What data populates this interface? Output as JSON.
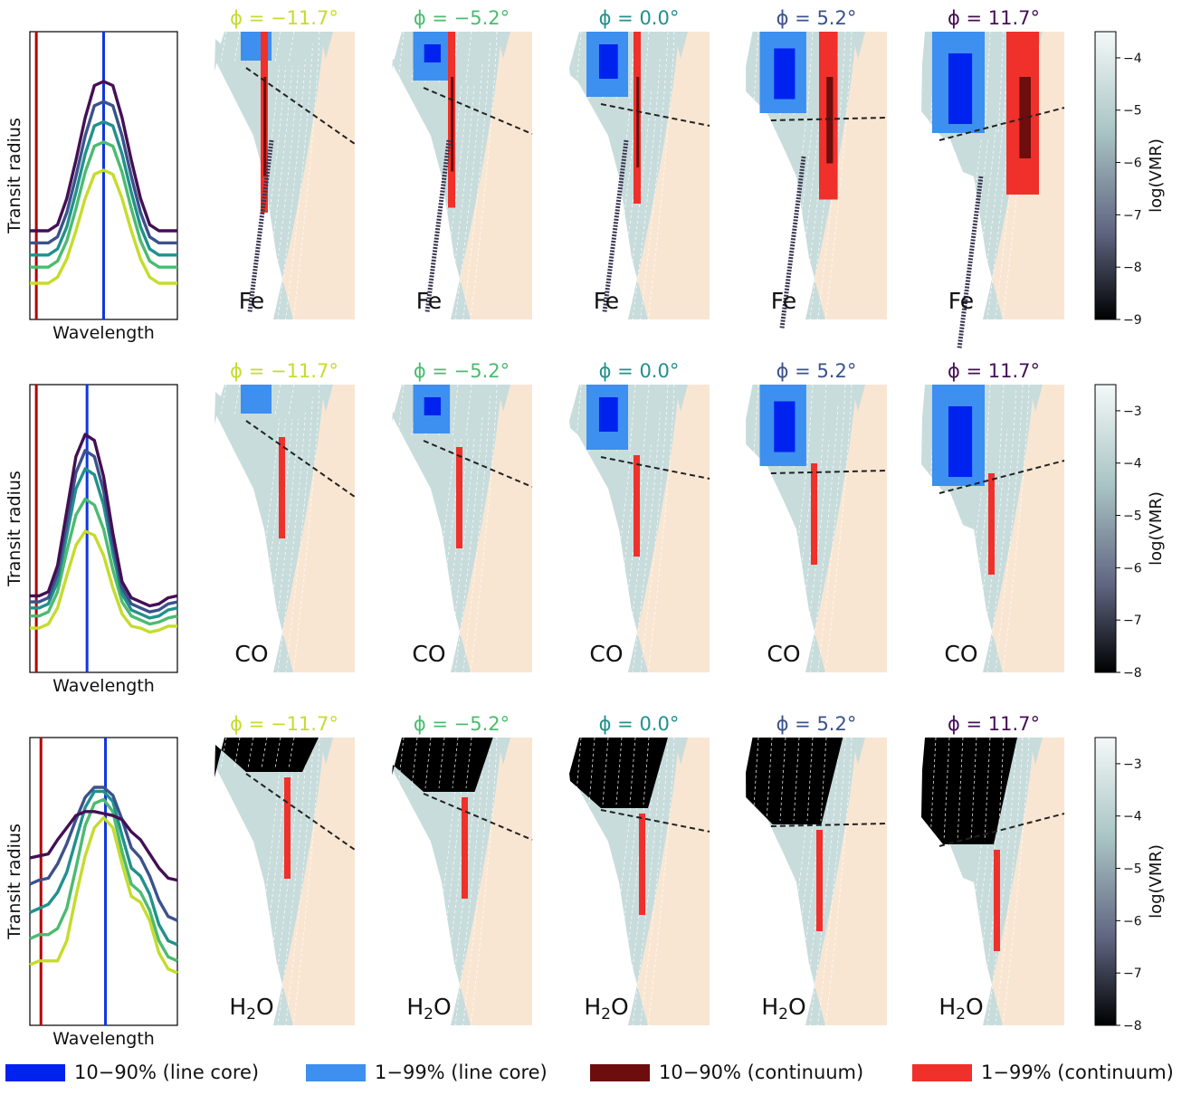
{
  "colors": {
    "line_core_10_90": "#0022ee",
    "line_core_1_99": "#3d8ff0",
    "continuum_10_90": "#6e0d0d",
    "continuum_1_99": "#f0302a",
    "reference_red": "#b40000",
    "reference_blue": "#1036e0",
    "atmosphere": "#c8dcdc",
    "planet": "#f9e6d2"
  },
  "chart_data": [
    {
      "type": "line",
      "row": "Fe",
      "xlabel": "Wavelength",
      "ylabel": "Transit radius",
      "series": [
        {
          "phase": "−11.7°",
          "color": "#c5dc2c",
          "x": [
            0,
            1,
            2,
            3,
            4,
            5,
            6,
            7,
            8,
            9,
            10,
            11,
            12,
            13,
            14,
            15,
            16
          ],
          "values": [
            0,
            0,
            0,
            0.03,
            0.12,
            0.26,
            0.42,
            0.54,
            0.56,
            0.54,
            0.42,
            0.26,
            0.12,
            0.03,
            0,
            0,
            0
          ]
        },
        {
          "phase": "−5.2°",
          "color": "#4cbb70",
          "x": [
            0,
            1,
            2,
            3,
            4,
            5,
            6,
            7,
            8,
            9,
            10,
            11,
            12,
            13,
            14,
            15,
            16
          ],
          "values": [
            0.08,
            0.08,
            0.08,
            0.11,
            0.21,
            0.37,
            0.55,
            0.68,
            0.7,
            0.68,
            0.55,
            0.37,
            0.21,
            0.11,
            0.08,
            0.08,
            0.08
          ]
        },
        {
          "phase": "0.0°",
          "color": "#21918c",
          "x": [
            0,
            1,
            2,
            3,
            4,
            5,
            6,
            7,
            8,
            9,
            10,
            11,
            12,
            13,
            14,
            15,
            16
          ],
          "values": [
            0.14,
            0.14,
            0.14,
            0.17,
            0.28,
            0.45,
            0.64,
            0.78,
            0.8,
            0.78,
            0.64,
            0.45,
            0.28,
            0.17,
            0.14,
            0.14,
            0.14
          ]
        },
        {
          "phase": "5.2°",
          "color": "#3b528b",
          "x": [
            0,
            1,
            2,
            3,
            4,
            5,
            6,
            7,
            8,
            9,
            10,
            11,
            12,
            13,
            14,
            15,
            16
          ],
          "values": [
            0.2,
            0.2,
            0.2,
            0.23,
            0.35,
            0.53,
            0.73,
            0.88,
            0.9,
            0.88,
            0.73,
            0.53,
            0.35,
            0.23,
            0.2,
            0.2,
            0.2
          ]
        },
        {
          "phase": "11.7°",
          "color": "#440f54",
          "x": [
            0,
            1,
            2,
            3,
            4,
            5,
            6,
            7,
            8,
            9,
            10,
            11,
            12,
            13,
            14,
            15,
            16
          ],
          "values": [
            0.26,
            0.26,
            0.26,
            0.29,
            0.42,
            0.61,
            0.82,
            0.98,
            1,
            0.98,
            0.82,
            0.61,
            0.42,
            0.29,
            0.26,
            0.26,
            0.26
          ]
        }
      ],
      "reference_lines": {
        "red_x": 0.7,
        "blue_x": 8
      }
    },
    {
      "type": "line",
      "row": "CO",
      "xlabel": "Wavelength",
      "ylabel": "Transit radius",
      "series": [
        {
          "phase": "−11.7°",
          "color": "#c5dc2c",
          "x": [
            0,
            1,
            2,
            3,
            4,
            5,
            6,
            7,
            8,
            9,
            10,
            11,
            12,
            13,
            14,
            15,
            16
          ],
          "values": [
            0.04,
            0.04,
            0.06,
            0.14,
            0.3,
            0.45,
            0.52,
            0.5,
            0.4,
            0.24,
            0.11,
            0.05,
            0.04,
            0.02,
            0.03,
            0.05,
            0.05
          ]
        },
        {
          "phase": "−5.2°",
          "color": "#4cbb70",
          "x": [
            0,
            1,
            2,
            3,
            4,
            5,
            6,
            7,
            8,
            9,
            10,
            11,
            12,
            13,
            14,
            15,
            16
          ],
          "values": [
            0.1,
            0.1,
            0.12,
            0.22,
            0.42,
            0.6,
            0.68,
            0.65,
            0.53,
            0.33,
            0.17,
            0.1,
            0.08,
            0.06,
            0.07,
            0.09,
            0.1
          ]
        },
        {
          "phase": "0.0°",
          "color": "#21918c",
          "x": [
            0,
            1,
            2,
            3,
            4,
            5,
            6,
            7,
            8,
            9,
            10,
            11,
            12,
            13,
            14,
            15,
            16
          ],
          "values": [
            0.14,
            0.14,
            0.16,
            0.27,
            0.5,
            0.73,
            0.83,
            0.8,
            0.65,
            0.41,
            0.21,
            0.13,
            0.11,
            0.09,
            0.1,
            0.13,
            0.14
          ]
        },
        {
          "phase": "5.2°",
          "color": "#3b528b",
          "x": [
            0,
            1,
            2,
            3,
            4,
            5,
            6,
            7,
            8,
            9,
            10,
            11,
            12,
            13,
            14,
            15,
            16
          ],
          "values": [
            0.17,
            0.17,
            0.19,
            0.31,
            0.56,
            0.81,
            0.92,
            0.89,
            0.72,
            0.46,
            0.24,
            0.16,
            0.14,
            0.12,
            0.13,
            0.16,
            0.17
          ]
        },
        {
          "phase": "11.7°",
          "color": "#440f54",
          "x": [
            0,
            1,
            2,
            3,
            4,
            5,
            6,
            7,
            8,
            9,
            10,
            11,
            12,
            13,
            14,
            15,
            16
          ],
          "values": [
            0.2,
            0.2,
            0.22,
            0.35,
            0.62,
            0.89,
            1,
            0.97,
            0.79,
            0.51,
            0.27,
            0.19,
            0.17,
            0.15,
            0.16,
            0.19,
            0.2
          ]
        }
      ],
      "reference_lines": {
        "red_x": 0.7,
        "blue_x": 6.2
      }
    },
    {
      "type": "line",
      "row": "H2O",
      "xlabel": "Wavelength",
      "ylabel": "Transit radius",
      "series": [
        {
          "phase": "−11.7°",
          "color": "#c5dc2c",
          "x": [
            0,
            1,
            2,
            3,
            4,
            5,
            6,
            7,
            8,
            9,
            10,
            11,
            12,
            13,
            14,
            15,
            16
          ],
          "values": [
            0.12,
            0.14,
            0.14,
            0.14,
            0.24,
            0.46,
            0.66,
            0.8,
            0.85,
            0.8,
            0.62,
            0.46,
            0.43,
            0.34,
            0.18,
            0.1,
            0.08
          ]
        },
        {
          "phase": "−5.2°",
          "color": "#4cbb70",
          "x": [
            0,
            1,
            2,
            3,
            4,
            5,
            6,
            7,
            8,
            9,
            10,
            11,
            12,
            13,
            14,
            15,
            16
          ],
          "values": [
            0.25,
            0.27,
            0.27,
            0.3,
            0.4,
            0.6,
            0.81,
            0.92,
            0.94,
            0.88,
            0.68,
            0.52,
            0.48,
            0.39,
            0.24,
            0.16,
            0.14
          ]
        },
        {
          "phase": "0.0°",
          "color": "#21918c",
          "x": [
            0,
            1,
            2,
            3,
            4,
            5,
            6,
            7,
            8,
            9,
            10,
            11,
            12,
            13,
            14,
            15,
            16
          ],
          "values": [
            0.38,
            0.4,
            0.42,
            0.48,
            0.58,
            0.74,
            0.9,
            0.98,
            0.98,
            0.93,
            0.76,
            0.6,
            0.56,
            0.47,
            0.32,
            0.24,
            0.22
          ]
        },
        {
          "phase": "5.2°",
          "color": "#3b528b",
          "x": [
            0,
            1,
            2,
            3,
            4,
            5,
            6,
            7,
            8,
            9,
            10,
            11,
            12,
            13,
            14,
            15,
            16
          ],
          "values": [
            0.52,
            0.54,
            0.55,
            0.62,
            0.72,
            0.84,
            0.95,
            1,
            1,
            0.96,
            0.84,
            0.7,
            0.65,
            0.56,
            0.44,
            0.36,
            0.34
          ]
        },
        {
          "phase": "11.7°",
          "color": "#440f54",
          "x": [
            0,
            1,
            2,
            3,
            4,
            5,
            6,
            7,
            8,
            9,
            10,
            11,
            12,
            13,
            14,
            15,
            16
          ],
          "values": [
            0.65,
            0.66,
            0.67,
            0.74,
            0.8,
            0.86,
            0.88,
            0.88,
            0.87,
            0.86,
            0.84,
            0.78,
            0.74,
            0.67,
            0.6,
            0.55,
            0.54
          ]
        }
      ],
      "reference_lines": {
        "red_x": 1.2,
        "blue_x": 8.2
      }
    }
  ],
  "phases": [
    {
      "label": "ϕ = −11.7°",
      "color": "#c5dc2c"
    },
    {
      "label": "ϕ = −5.2°",
      "color": "#4cbb70"
    },
    {
      "label": "ϕ = 0.0°",
      "color": "#21918c"
    },
    {
      "label": "ϕ = 5.2°",
      "color": "#3b528b"
    },
    {
      "label": "ϕ = 11.7°",
      "color": "#440f54"
    }
  ],
  "species": [
    "Fe",
    "CO",
    "H2O"
  ],
  "colorbars": [
    {
      "label": "log(VMR)",
      "ticks": [
        "−4",
        "−5",
        "−6",
        "−7",
        "−8",
        "−9"
      ],
      "range": [
        -3.5,
        -9
      ]
    },
    {
      "label": "log(VMR)",
      "ticks": [
        "−3",
        "−4",
        "−5",
        "−6",
        "−7",
        "−8"
      ],
      "range": [
        -2.5,
        -8
      ]
    },
    {
      "label": "log(VMR)",
      "ticks": [
        "−3",
        "−4",
        "−5",
        "−6",
        "−7",
        "−8"
      ],
      "range": [
        -2.5,
        -8
      ]
    }
  ],
  "legend": [
    {
      "label": "10−90% (line core)",
      "color": "#0022ee"
    },
    {
      "label": "1−99% (line core)",
      "color": "#3d8ff0"
    },
    {
      "label": "10−90% (continuum)",
      "color": "#6e0d0d"
    },
    {
      "label": "1−99% (continuum)",
      "color": "#f0302a"
    }
  ]
}
